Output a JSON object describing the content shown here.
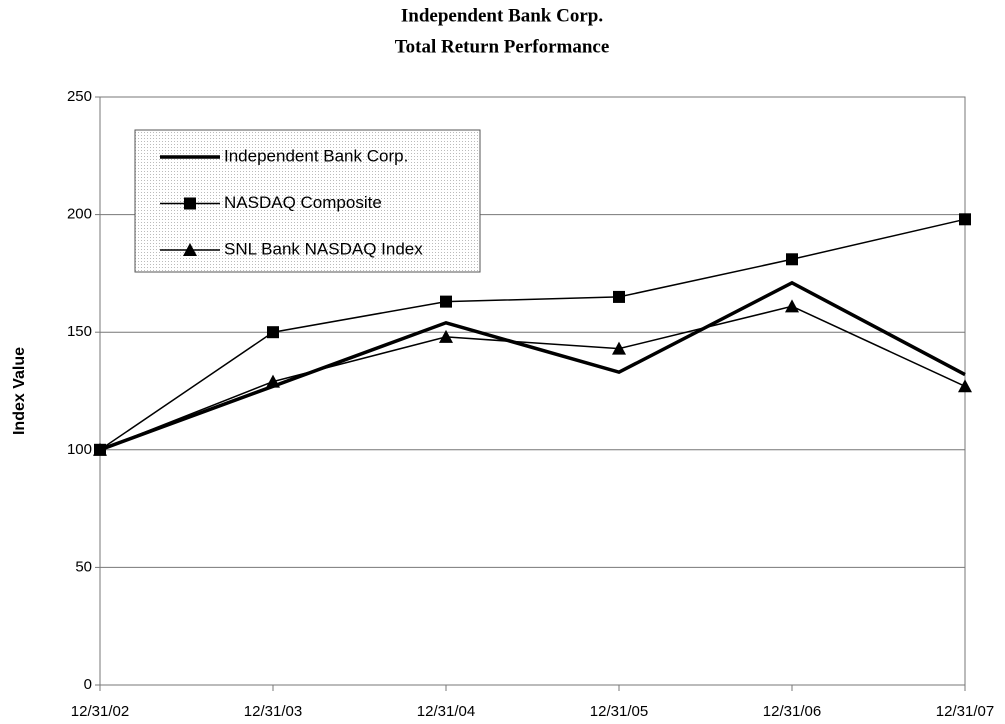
{
  "chart_data": {
    "type": "line",
    "title": "Independent Bank Corp.",
    "subtitle": "Total Return Performance",
    "y_label": "Index Value",
    "categories": [
      "12/31/02",
      "12/31/03",
      "12/31/04",
      "12/31/05",
      "12/31/06",
      "12/31/07"
    ],
    "series": [
      {
        "name": "Independent Bank Corp.",
        "color": "#000000",
        "marker": "none",
        "line_width": 3.5,
        "values": [
          100,
          127,
          154,
          133,
          171,
          132
        ]
      },
      {
        "name": "NASDAQ Composite",
        "color": "#000000",
        "marker": "square",
        "line_width": 1.5,
        "values": [
          100,
          150,
          163,
          165,
          181,
          198
        ]
      },
      {
        "name": "SNL Bank NASDAQ Index",
        "color": "#000000",
        "marker": "triangle",
        "line_width": 1.5,
        "values": [
          100,
          129,
          148,
          143,
          161,
          127
        ]
      }
    ],
    "ylim": [
      0,
      250
    ],
    "yticks": [
      0,
      50,
      100,
      150,
      200,
      250
    ],
    "grid": true,
    "legend": "upper left"
  }
}
